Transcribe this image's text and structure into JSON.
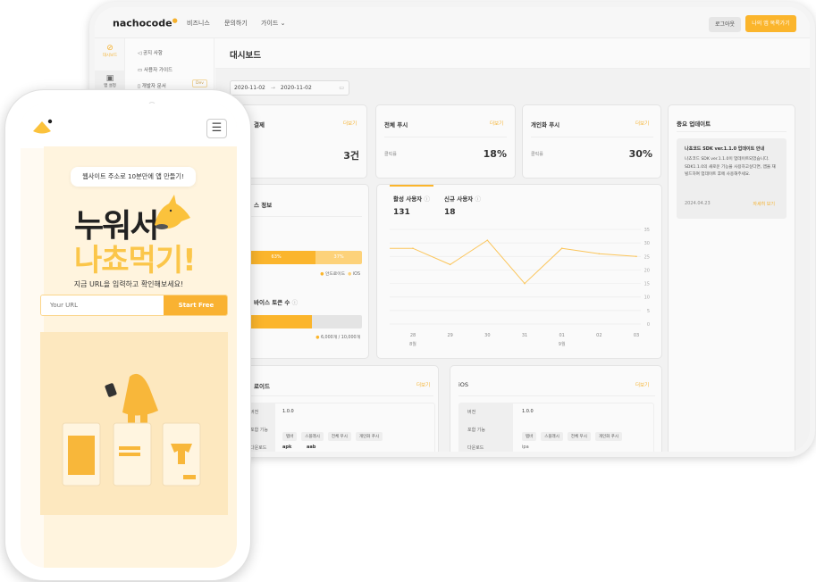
{
  "tablet": {
    "header": {
      "logo": "nachocode",
      "nav": [
        "비즈니스",
        "문의하기",
        "가이드"
      ],
      "logout": "로그아웃",
      "cta": "나의 앱 목록가기"
    },
    "sidebar": {
      "icons": [
        {
          "label": "대시보드",
          "icon": "compass-icon",
          "active": true
        },
        {
          "label": "앱 설정",
          "icon": "app-settings-icon",
          "active": false
        }
      ],
      "menu": [
        {
          "label": "공지 사항",
          "icon": "megaphone-icon"
        },
        {
          "label": "사용자 가이드",
          "icon": "book-icon"
        },
        {
          "label": "개발자 문서",
          "icon": "document-icon",
          "badge": "Dev"
        }
      ]
    },
    "page_title": "대시보드",
    "date_range": {
      "start": "2020-11-02",
      "end": "2020-11-02"
    },
    "stats": [
      {
        "title": "결제",
        "more": "더보기",
        "label": "",
        "value": "3건"
      },
      {
        "title": "전체 푸시",
        "more": "더보기",
        "label": "클릭률",
        "value": "18%"
      },
      {
        "title": "개인화 푸시",
        "more": "더보기",
        "label": "클릭률",
        "value": "30%"
      }
    ],
    "update": {
      "title": "중요 업데이트",
      "item_title": "나쵸코드 SDK ver.1.1.0 업데이트 안내",
      "body": "나쵸코드 SDK ver.1.1.0이 업데이트되었습니다. SDK1.1.0의 새로운 기능을 사용하고싶다면, 앱을 재빌드하여 업데이트 후에 사용해주세요.",
      "date": "2024.04.23",
      "link": "자세히 보기"
    },
    "device": {
      "title": "스 정보",
      "android_pct": "63%",
      "ios_pct": "37%",
      "android_share": 63,
      "legend_android": "안드로이드",
      "legend_ios": "iOS",
      "token_title": "바이스 토큰 수",
      "token_used": 6000,
      "token_total": 10000,
      "token_text": "6,000개 / 10,000개",
      "colors": {
        "android": "#fbb52c",
        "ios": "#fdd27a"
      }
    },
    "users": {
      "active_label": "활성 사용자",
      "active_value": "131",
      "new_label": "신규 사용자",
      "new_value": "18"
    },
    "chart_data": {
      "type": "line",
      "x": [
        "28",
        "29",
        "30",
        "31",
        "01",
        "02",
        "03"
      ],
      "month_labels": {
        "28": "8월",
        "01": "9월"
      },
      "values": [
        28,
        22,
        31,
        15,
        28,
        26,
        25
      ],
      "ylim": [
        0,
        35
      ],
      "yticks": [
        0,
        5,
        10,
        15,
        20,
        25,
        30,
        35
      ],
      "grid": true,
      "color": "#fbc55a"
    },
    "android": {
      "title": "로이드",
      "more": "더보기",
      "rows": [
        {
          "k": "버전",
          "v": "1.0.0"
        },
        {
          "k": "포함 기능",
          "tags": [
            "탭바",
            "스플래시",
            "전체 푸시",
            "개인화 푸시"
          ]
        },
        {
          "k": "다운로드",
          "links": [
            "apk",
            "aab"
          ]
        }
      ]
    },
    "ios": {
      "title": "iOS",
      "more": "더보기",
      "rows": [
        {
          "k": "버전",
          "v": "1.0.0"
        },
        {
          "k": "포함 기능",
          "tags": [
            "탭바",
            "스플래시",
            "전체 푸시",
            "개인화 푸시"
          ]
        },
        {
          "k": "다운로드",
          "links": [
            "ipa"
          ]
        }
      ]
    }
  },
  "phone": {
    "bubble": "웹사이트 주소로 10분만에 앱 만들기!",
    "headline1": "누워서",
    "headline2": "나쵸먹기!",
    "subtitle": "지금 URL을 입력하고 확인해보세요!",
    "input_placeholder": "Your URL",
    "cta": "Start Free",
    "accent": "#fbb52c"
  }
}
